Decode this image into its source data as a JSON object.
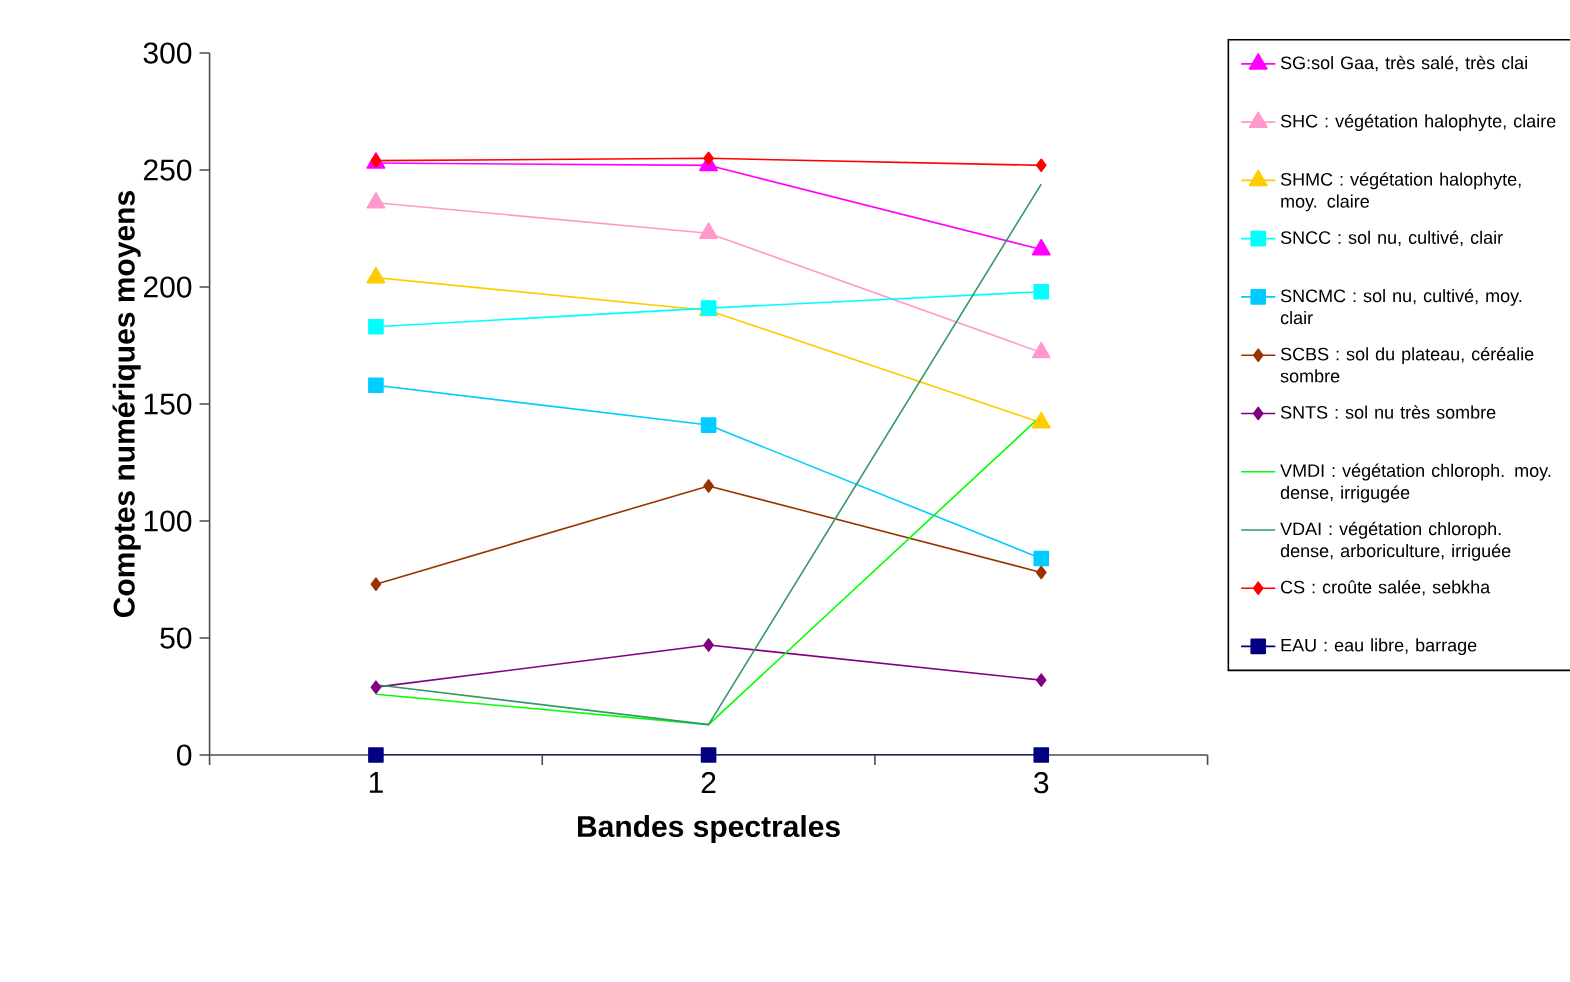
{
  "chart_data": {
    "type": "line",
    "xlabel": "Bandes spectrales",
    "ylabel": "Comptes numériques moyens",
    "categories": [
      "1",
      "2",
      "3"
    ],
    "ylim": [
      0,
      300
    ],
    "yticks": [
      0,
      50,
      100,
      150,
      200,
      250,
      300
    ],
    "grid": false,
    "legend": "right",
    "line_style": "solid",
    "series": [
      {
        "name": "SG:sol Gaa, très salé, très clai",
        "color": "#ff00ff",
        "marker": "triangle",
        "values": [
          253,
          252,
          216
        ]
      },
      {
        "name": "SHC : végétation halophyte, claire",
        "color": "#ff99cc",
        "marker": "triangle",
        "values": [
          236,
          223,
          172
        ]
      },
      {
        "name": "SHMC : végétation halophyte, moy. claire",
        "color": "#ffcc00",
        "marker": "triangle",
        "values": [
          204,
          190,
          142
        ]
      },
      {
        "name": "SNCC : sol nu, cultivé, clair",
        "color": "#00ffff",
        "marker": "square",
        "values": [
          183,
          191,
          198
        ]
      },
      {
        "name": "SNCMC : sol nu, cultivé, moy. clair",
        "color": "#00ccff",
        "marker": "square",
        "values": [
          158,
          141,
          84
        ]
      },
      {
        "name": "SCBS : sol du plateau, céréalie sombre",
        "color": "#993300",
        "marker": "diamond",
        "values": [
          73,
          115,
          78
        ]
      },
      {
        "name": "SNTS : sol nu très sombre",
        "color": "#800080",
        "marker": "diamond",
        "values": [
          29,
          47,
          32
        ]
      },
      {
        "name": "VMDI : végétation chloroph. moy. dense, irrigugée",
        "color": "#00ff00",
        "marker": "none",
        "values": [
          26,
          13,
          145
        ]
      },
      {
        "name": "VDAI : végétation chloroph. dense, arboriculture, irriguée",
        "color": "#339966",
        "marker": "none",
        "values": [
          30,
          13,
          244
        ]
      },
      {
        "name": "CS : croûte salée, sebkha",
        "color": "#ff0000",
        "marker": "diamond",
        "values": [
          254,
          255,
          252
        ]
      },
      {
        "name": "EAU : eau libre, barrage",
        "color": "#000080",
        "marker": "square",
        "values": [
          0,
          0,
          0
        ]
      }
    ]
  }
}
